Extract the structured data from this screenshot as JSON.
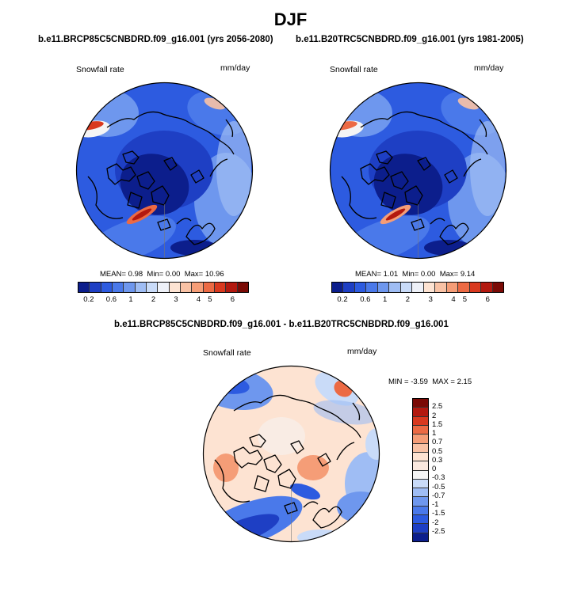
{
  "season": "DJF",
  "panels": {
    "future": {
      "title": "b.e11.BRCP85C5CNBDRD.f09_g16.001 (yrs 2056-2080)",
      "var_label": "Snowfall rate",
      "units": "mm/day",
      "stats": {
        "mean_label": "MEAN=",
        "mean": "0.98",
        "min_label": "Min=",
        "min": "0.00",
        "max_label": "Max=",
        "max": "10.96"
      }
    },
    "historical": {
      "title": "b.e11.B20TRC5CNBDRD.f09_g16.001 (yrs 1981-2005)",
      "var_label": "Snowfall rate",
      "units": "mm/day",
      "stats": {
        "mean_label": "MEAN=",
        "mean": "1.01",
        "min_label": "Min=",
        "min": "0.00",
        "max_label": "Max=",
        "max": "9.14"
      }
    },
    "difference": {
      "title": "b.e11.BRCP85C5CNBDRD.f09_g16.001 - b.e11.B20TRC5CNBDRD.f09_g16.001",
      "var_label": "Snowfall rate",
      "units": "mm/day",
      "stats": {
        "min_label": "MIN =",
        "min": "-3.59",
        "max_label": "MAX =",
        "max": "2.15"
      }
    }
  },
  "chart_data": [
    {
      "type": "heatmap",
      "projection": "north polar stereographic",
      "title": "b.e11.BRCP85C5CNBDRD.f09_g16.001 (yrs 2056-2080)",
      "variable": "Snowfall rate",
      "units": "mm/day",
      "mean": 0.98,
      "min": 0.0,
      "max": 10.96,
      "colorbar_ticks": [
        "0.2",
        "0.6",
        "1",
        "2",
        "3",
        "4",
        "5",
        "6"
      ],
      "colorbar_colors": [
        "#0c1e8c",
        "#1e3fc4",
        "#2d5be0",
        "#4a79ea",
        "#6e97ee",
        "#9fbdf4",
        "#c9dbf8",
        "#eef1f8",
        "#fde3d2",
        "#f9c2a5",
        "#f59d77",
        "#ec6a44",
        "#d9391f",
        "#b3190f",
        "#7a0a05"
      ]
    },
    {
      "type": "heatmap",
      "projection": "north polar stereographic",
      "title": "b.e11.B20TRC5CNBDRD.f09_g16.001 (yrs 1981-2005)",
      "variable": "Snowfall rate",
      "units": "mm/day",
      "mean": 1.01,
      "min": 0.0,
      "max": 9.14,
      "colorbar_ticks": [
        "0.2",
        "0.6",
        "1",
        "2",
        "3",
        "4",
        "5",
        "6"
      ],
      "colorbar_colors": [
        "#0c1e8c",
        "#1e3fc4",
        "#2d5be0",
        "#4a79ea",
        "#6e97ee",
        "#9fbdf4",
        "#c9dbf8",
        "#eef1f8",
        "#fde3d2",
        "#f9c2a5",
        "#f59d77",
        "#ec6a44",
        "#d9391f",
        "#b3190f",
        "#7a0a05"
      ]
    },
    {
      "type": "heatmap",
      "projection": "north polar stereographic",
      "title": "b.e11.BRCP85C5CNBDRD.f09_g16.001 - b.e11.B20TRC5CNBDRD.f09_g16.001",
      "variable": "Snowfall rate",
      "units": "mm/day",
      "min": -3.59,
      "max": 2.15,
      "colorbar_ticks": [
        "2.5",
        "2",
        "1.5",
        "1",
        "0.7",
        "0.5",
        "0.3",
        "0",
        "-0.3",
        "-0.5",
        "-0.7",
        "-1",
        "-1.5",
        "-2",
        "-2.5"
      ],
      "colorbar_colors": [
        "#7a0a05",
        "#b3190f",
        "#d9391f",
        "#ec6a44",
        "#f59d77",
        "#f9c2a5",
        "#fde3d2",
        "#fbe9df",
        "#f5f5f5",
        "#c9dbf8",
        "#9fbdf4",
        "#6e97ee",
        "#4a79ea",
        "#2d5be0",
        "#1e3fc4",
        "#0c1e8c"
      ]
    }
  ]
}
